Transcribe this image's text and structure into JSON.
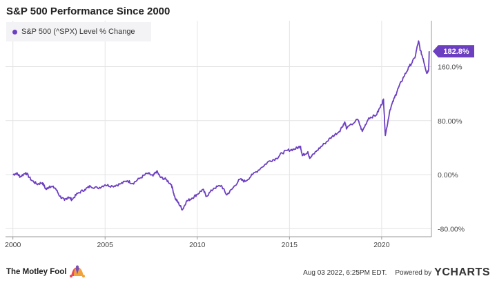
{
  "chart_data": {
    "type": "line",
    "title": "S&P 500 Performance Since 2000",
    "series": [
      {
        "name": "S&P 500 (^SPX) Level % Change",
        "color": "#6c3fc1",
        "last_value_label": "182.8%",
        "points": [
          [
            2000.0,
            0
          ],
          [
            2000.2,
            2
          ],
          [
            2000.4,
            -3
          ],
          [
            2000.7,
            3
          ],
          [
            2001.0,
            -8
          ],
          [
            2001.3,
            -14
          ],
          [
            2001.6,
            -12
          ],
          [
            2001.8,
            -22
          ],
          [
            2002.0,
            -17
          ],
          [
            2002.3,
            -20
          ],
          [
            2002.55,
            -32
          ],
          [
            2002.8,
            -38
          ],
          [
            2003.0,
            -33
          ],
          [
            2003.2,
            -37
          ],
          [
            2003.5,
            -28
          ],
          [
            2003.9,
            -22
          ],
          [
            2004.2,
            -17
          ],
          [
            2004.6,
            -20
          ],
          [
            2005.0,
            -15
          ],
          [
            2005.4,
            -17
          ],
          [
            2005.8,
            -14
          ],
          [
            2006.2,
            -9
          ],
          [
            2006.5,
            -13
          ],
          [
            2006.9,
            -5
          ],
          [
            2007.3,
            2
          ],
          [
            2007.6,
            -2
          ],
          [
            2007.8,
            5
          ],
          [
            2008.0,
            -4
          ],
          [
            2008.3,
            -7
          ],
          [
            2008.6,
            -15
          ],
          [
            2008.8,
            -35
          ],
          [
            2009.0,
            -43
          ],
          [
            2009.2,
            -52
          ],
          [
            2009.4,
            -40
          ],
          [
            2009.7,
            -35
          ],
          [
            2010.0,
            -29
          ],
          [
            2010.3,
            -22
          ],
          [
            2010.5,
            -32
          ],
          [
            2010.9,
            -20
          ],
          [
            2011.3,
            -16
          ],
          [
            2011.6,
            -30
          ],
          [
            2011.9,
            -21
          ],
          [
            2012.3,
            -7
          ],
          [
            2012.6,
            -10
          ],
          [
            2013.0,
            0
          ],
          [
            2013.5,
            11
          ],
          [
            2013.9,
            20
          ],
          [
            2014.3,
            24
          ],
          [
            2014.6,
            32
          ],
          [
            2014.9,
            36
          ],
          [
            2015.3,
            38
          ],
          [
            2015.6,
            42
          ],
          [
            2015.7,
            28
          ],
          [
            2016.0,
            34
          ],
          [
            2016.1,
            24
          ],
          [
            2016.5,
            36
          ],
          [
            2016.9,
            46
          ],
          [
            2017.3,
            56
          ],
          [
            2017.7,
            64
          ],
          [
            2018.0,
            78
          ],
          [
            2018.1,
            68
          ],
          [
            2018.7,
            82
          ],
          [
            2018.95,
            64
          ],
          [
            2019.3,
            84
          ],
          [
            2019.7,
            88
          ],
          [
            2020.0,
            104
          ],
          [
            2020.1,
            112
          ],
          [
            2020.2,
            58
          ],
          [
            2020.45,
            96
          ],
          [
            2020.7,
            114
          ],
          [
            2020.9,
            128
          ],
          [
            2021.2,
            145
          ],
          [
            2021.5,
            160
          ],
          [
            2021.8,
            173
          ],
          [
            2022.0,
            198
          ],
          [
            2022.1,
            184
          ],
          [
            2022.25,
            172
          ],
          [
            2022.45,
            150
          ],
          [
            2022.55,
            156
          ],
          [
            2022.58,
            182.8
          ]
        ]
      }
    ],
    "x_ticks": [
      "2000",
      "2005",
      "2010",
      "2015",
      "2020"
    ],
    "x_tick_values": [
      2000,
      2005,
      2010,
      2015,
      2020
    ],
    "y_ticks": [
      "160.0%",
      "80.00%",
      "0.00%",
      "-80.00%"
    ],
    "y_tick_values": [
      160,
      80,
      0,
      -80
    ],
    "xlim": [
      1999.6,
      2022.7
    ],
    "ylim": [
      -92,
      228
    ],
    "grid": true,
    "legend_position": "top-left",
    "xlabel": "",
    "ylabel": ""
  },
  "footer": {
    "brand": "The Motley Fool",
    "timestamp": "Aug 03 2022, 6:25PM EDT.",
    "powered_by": "Powered by",
    "ycharts_y": "Y",
    "ycharts_rest": "CHARTS"
  }
}
